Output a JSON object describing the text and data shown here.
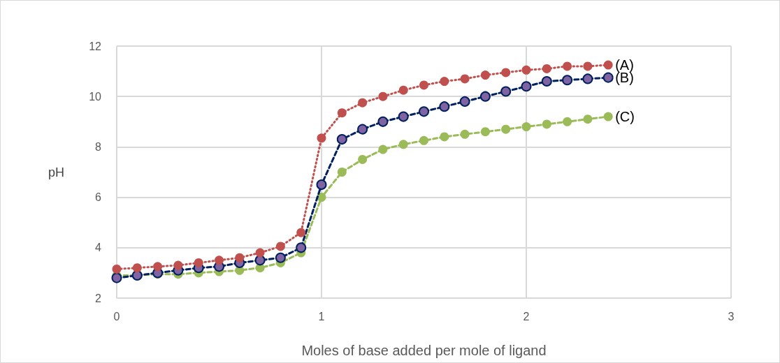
{
  "chart_data": {
    "type": "line",
    "xlabel": "Moles of base added per mole of ligand",
    "ylabel": "pH",
    "x": [
      0,
      0.1,
      0.2,
      0.3,
      0.4,
      0.5,
      0.6,
      0.7,
      0.8,
      0.9,
      1.0,
      1.1,
      1.2,
      1.3,
      1.4,
      1.5,
      1.6,
      1.7,
      1.8,
      1.9,
      2.0,
      2.1,
      2.2,
      2.3,
      2.4
    ],
    "series": [
      {
        "name": "(A)",
        "color": "#c0504d",
        "line_style": "dotted",
        "values": [
          3.15,
          3.2,
          3.25,
          3.3,
          3.4,
          3.5,
          3.6,
          3.8,
          4.05,
          4.6,
          8.35,
          9.35,
          9.75,
          10.0,
          10.25,
          10.45,
          10.6,
          10.7,
          10.85,
          10.95,
          11.05,
          11.1,
          11.2,
          11.2,
          11.25
        ]
      },
      {
        "name": "(B)",
        "color": "#002060",
        "line_style": "dashed",
        "values": [
          2.8,
          2.9,
          3.0,
          3.1,
          3.2,
          3.25,
          3.4,
          3.5,
          3.6,
          4.0,
          6.5,
          8.3,
          8.7,
          9.0,
          9.2,
          9.4,
          9.6,
          9.8,
          10.0,
          10.2,
          10.4,
          10.6,
          10.65,
          10.7,
          10.75
        ]
      },
      {
        "name": "(C)",
        "color": "#9bbb59",
        "line_style": "dashed",
        "values": [
          2.9,
          2.9,
          2.95,
          2.95,
          3.0,
          3.05,
          3.1,
          3.2,
          3.4,
          3.8,
          6.0,
          7.0,
          7.5,
          7.9,
          8.1,
          8.25,
          8.4,
          8.5,
          8.6,
          8.7,
          8.8,
          8.9,
          9.0,
          9.1,
          9.2
        ]
      }
    ],
    "xlim": [
      0,
      3
    ],
    "xticks": [
      0,
      1,
      2,
      3
    ],
    "ylim": [
      2,
      12
    ],
    "yticks": [
      2,
      4,
      6,
      8,
      10,
      12
    ],
    "grid": true,
    "legend": false,
    "marker": "circle"
  }
}
